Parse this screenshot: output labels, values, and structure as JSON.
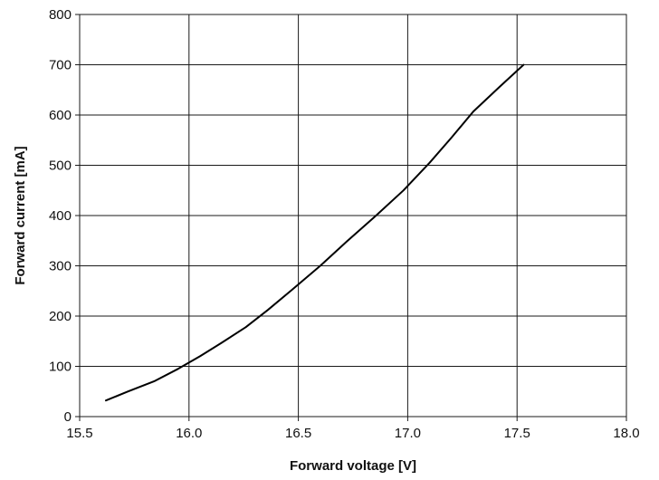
{
  "chart_data": {
    "type": "line",
    "title": "",
    "xlabel": "Forward voltage [V]",
    "ylabel": "Forward current [mA]",
    "xlim": [
      15.5,
      18.0
    ],
    "ylim": [
      0,
      800
    ],
    "x_ticks": [
      "15.5",
      "16.0",
      "16.5",
      "17.0",
      "17.5",
      "18.0"
    ],
    "y_ticks": [
      "0",
      "100",
      "200",
      "300",
      "400",
      "500",
      "600",
      "700",
      "800"
    ],
    "x_tick_values": [
      15.5,
      16.0,
      16.5,
      17.0,
      17.5,
      18.0
    ],
    "y_tick_values": [
      0,
      100,
      200,
      300,
      400,
      500,
      600,
      700,
      800
    ],
    "grid": true,
    "series": [
      {
        "color": "#000000",
        "x": [
          15.62,
          15.72,
          15.84,
          15.95,
          16.05,
          16.15,
          16.26,
          16.36,
          16.47,
          16.6,
          16.72,
          16.85,
          16.98,
          17.1,
          17.2,
          17.3,
          17.42,
          17.53
        ],
        "y": [
          32,
          50,
          70,
          95,
          120,
          147,
          178,
          212,
          252,
          300,
          348,
          398,
          450,
          505,
          555,
          607,
          656,
          700
        ]
      }
    ]
  }
}
